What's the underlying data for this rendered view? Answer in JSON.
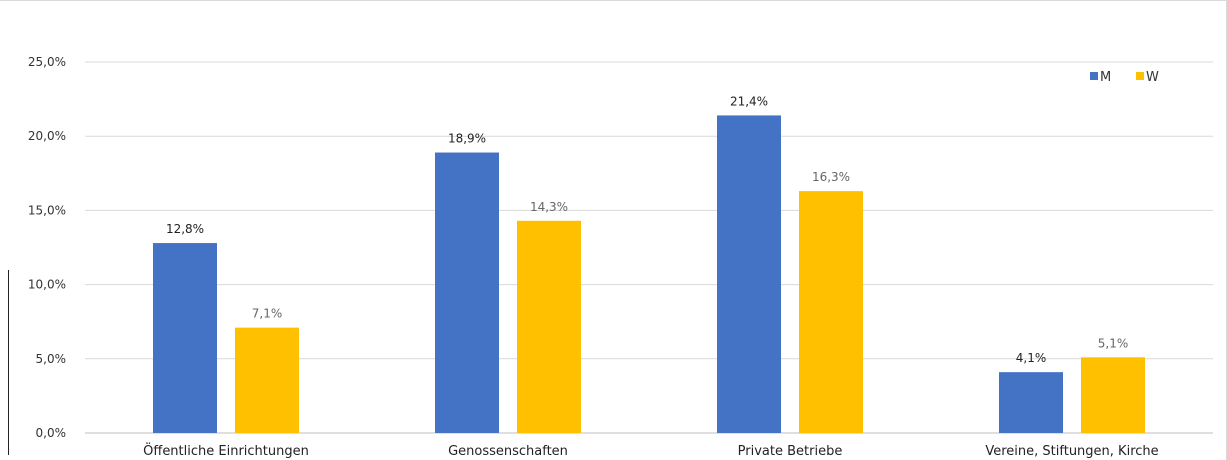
{
  "chart_data": {
    "type": "bar",
    "categories": [
      "Öffentliche Einrichtungen",
      "Genossenschaften",
      "Private Betriebe",
      "Vereine, Stiftungen, Kirche"
    ],
    "series": [
      {
        "name": "M",
        "values": [
          12.8,
          18.9,
          21.4,
          4.1
        ],
        "labels": [
          "12,8%",
          "18,9%",
          "21,4%",
          "4,1%"
        ],
        "color": "#4472c4"
      },
      {
        "name": "W",
        "values": [
          7.1,
          14.3,
          16.3,
          5.1
        ],
        "labels": [
          "7,1%",
          "14,3%",
          "16,3%",
          "5,1%"
        ],
        "color": "#ffc000"
      }
    ],
    "ylim": [
      0,
      25
    ],
    "yticks": [
      0,
      5,
      10,
      15,
      20,
      25
    ],
    "ytick_labels": [
      "0,0%",
      "5,0%",
      "10,0%",
      "15,0%",
      "20,0%",
      "25,0%"
    ],
    "grid": true,
    "legend": "top-right",
    "colors": {
      "gridline": "#d9d9d9",
      "axis": "#bfbfbf"
    }
  }
}
